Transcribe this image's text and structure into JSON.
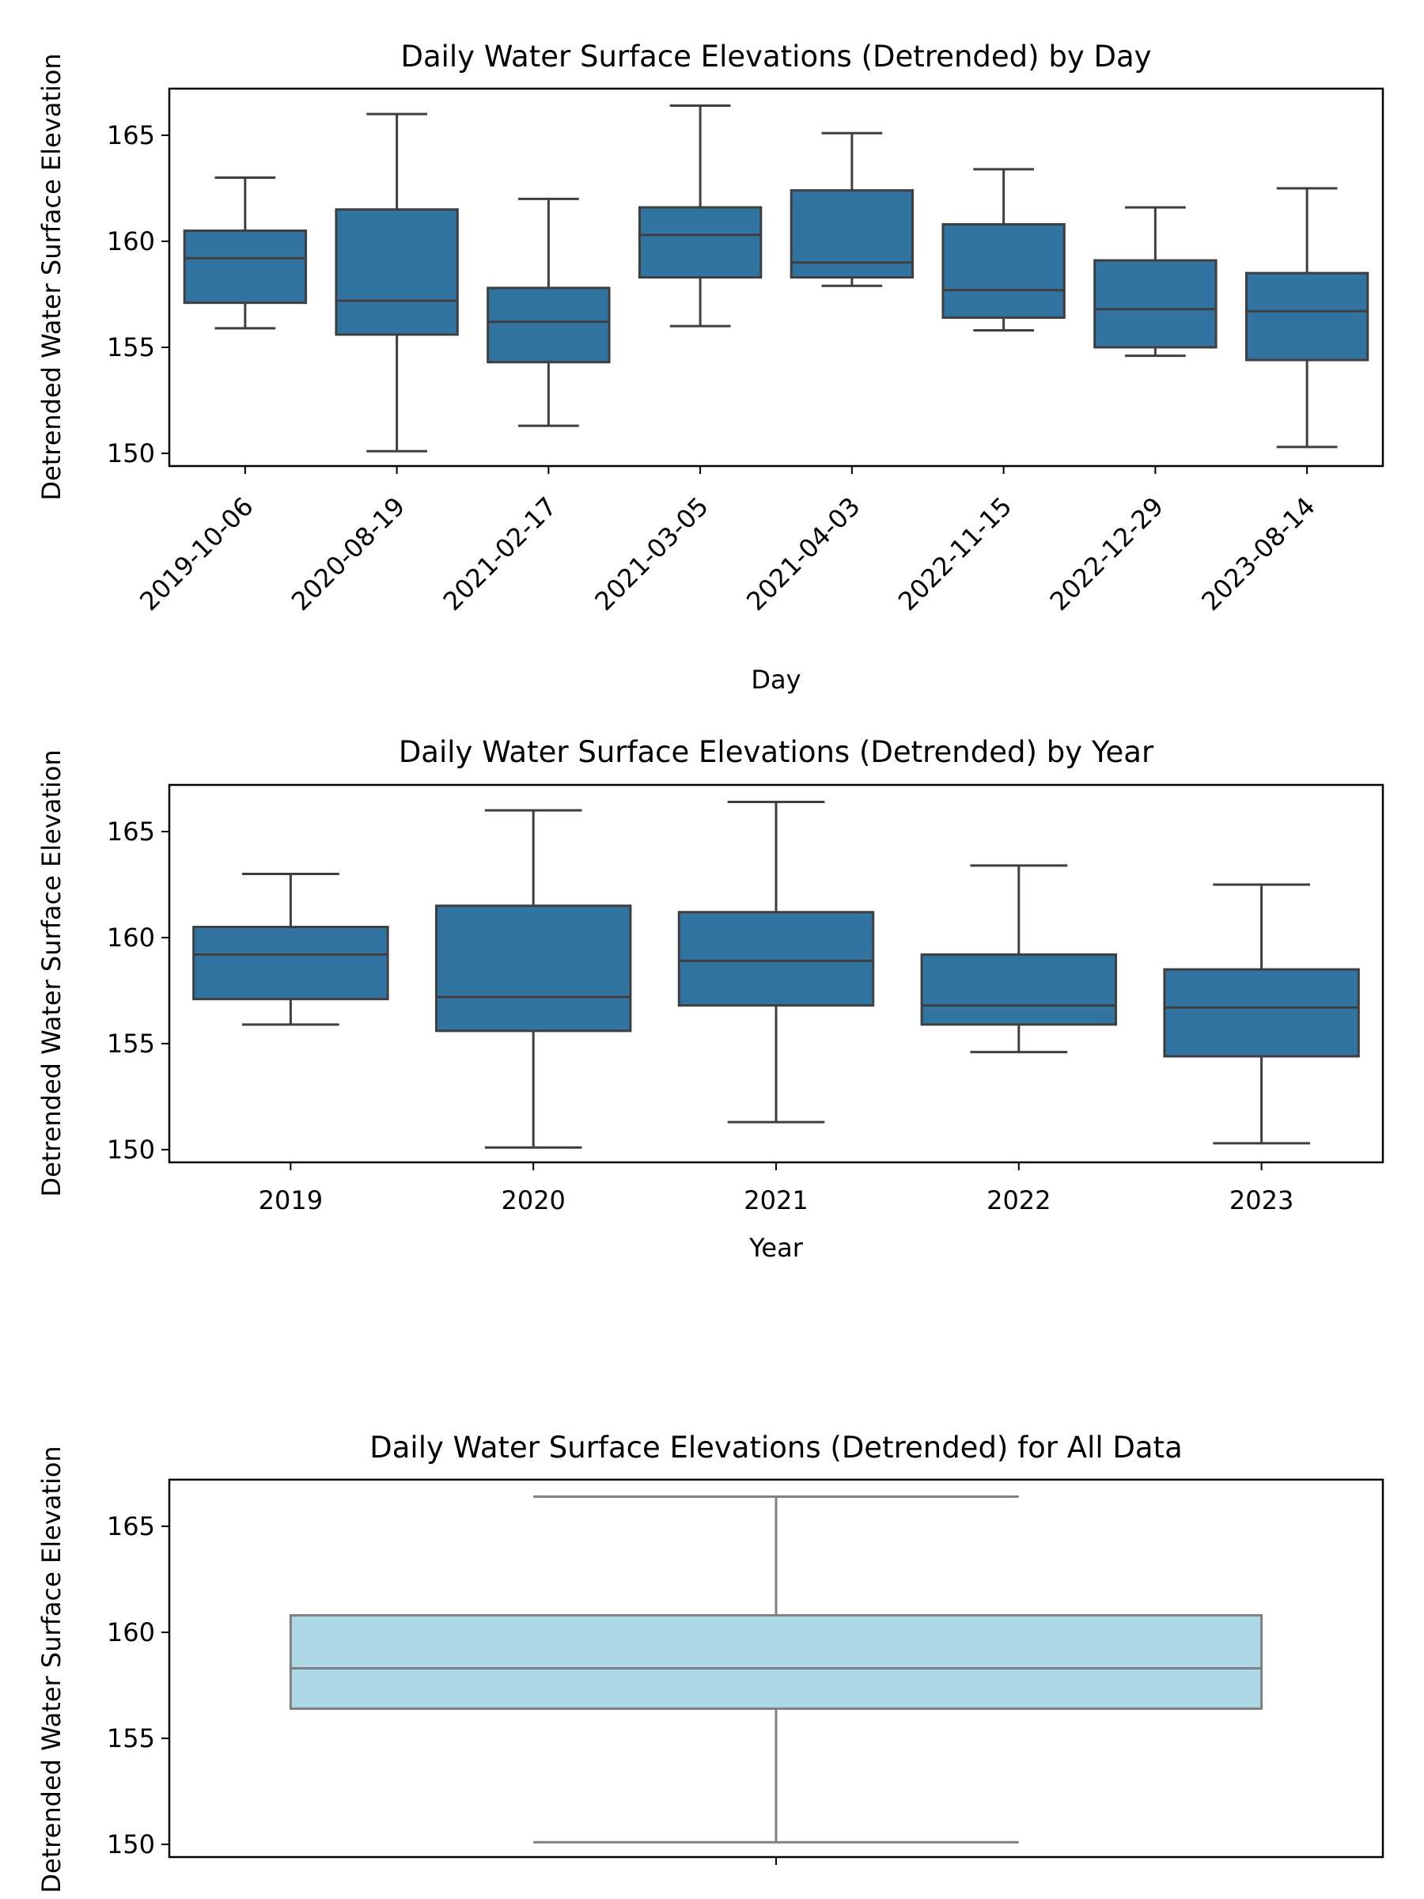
{
  "chart_data": [
    {
      "type": "box",
      "title": "Daily Water Surface Elevations (Detrended) by Day",
      "xlabel": "Day",
      "ylabel": "Detrended Water Surface Elevation",
      "ylim": [
        149.4,
        167.2
      ],
      "yticks": [
        150,
        155,
        160,
        165
      ],
      "color": "#3274a1",
      "edge_color": "#3f3f3f",
      "categories": [
        "2019-10-06",
        "2020-08-19",
        "2021-02-17",
        "2021-03-05",
        "2021-04-03",
        "2022-11-15",
        "2022-12-29",
        "2023-08-14"
      ],
      "boxes": [
        {
          "whislo": 155.9,
          "q1": 157.1,
          "med": 159.2,
          "q3": 160.5,
          "whishi": 163.0
        },
        {
          "whislo": 150.1,
          "q1": 155.6,
          "med": 157.2,
          "q3": 161.5,
          "whishi": 166.0
        },
        {
          "whislo": 151.3,
          "q1": 154.3,
          "med": 156.2,
          "q3": 157.8,
          "whishi": 162.0
        },
        {
          "whislo": 156.0,
          "q1": 158.3,
          "med": 160.3,
          "q3": 161.6,
          "whishi": 166.4
        },
        {
          "whislo": 157.9,
          "q1": 158.3,
          "med": 159.0,
          "q3": 162.4,
          "whishi": 165.1
        },
        {
          "whislo": 155.8,
          "q1": 156.4,
          "med": 157.7,
          "q3": 160.8,
          "whishi": 163.4
        },
        {
          "whislo": 154.6,
          "q1": 155.0,
          "med": 156.8,
          "q3": 159.1,
          "whishi": 161.6
        },
        {
          "whislo": 150.3,
          "q1": 154.4,
          "med": 156.7,
          "q3": 158.5,
          "whishi": 162.5
        }
      ]
    },
    {
      "type": "box",
      "title": "Daily Water Surface Elevations (Detrended) by Year",
      "xlabel": "Year",
      "ylabel": "Detrended Water Surface Elevation",
      "ylim": [
        149.4,
        167.2
      ],
      "yticks": [
        150,
        155,
        160,
        165
      ],
      "color": "#3274a1",
      "edge_color": "#3f3f3f",
      "categories": [
        "2019",
        "2020",
        "2021",
        "2022",
        "2023"
      ],
      "boxes": [
        {
          "whislo": 155.9,
          "q1": 157.1,
          "med": 159.2,
          "q3": 160.5,
          "whishi": 163.0
        },
        {
          "whislo": 150.1,
          "q1": 155.6,
          "med": 157.2,
          "q3": 161.5,
          "whishi": 166.0
        },
        {
          "whislo": 151.3,
          "q1": 156.8,
          "med": 158.9,
          "q3": 161.2,
          "whishi": 166.4
        },
        {
          "whislo": 154.6,
          "q1": 155.9,
          "med": 156.8,
          "q3": 159.2,
          "whishi": 163.4
        },
        {
          "whislo": 150.3,
          "q1": 154.4,
          "med": 156.7,
          "q3": 158.5,
          "whishi": 162.5
        }
      ]
    },
    {
      "type": "box",
      "title": "Daily Water Surface Elevations (Detrended) for All Data",
      "xlabel": "",
      "ylabel": "Detrended Water Surface Elevation",
      "ylim": [
        149.4,
        167.2
      ],
      "yticks": [
        150,
        155,
        160,
        165
      ],
      "color": "#add8e6",
      "edge_color": "#808080",
      "categories": [
        ""
      ],
      "boxes": [
        {
          "whislo": 150.1,
          "q1": 156.4,
          "med": 158.3,
          "q3": 160.8,
          "whishi": 166.4
        }
      ]
    }
  ]
}
